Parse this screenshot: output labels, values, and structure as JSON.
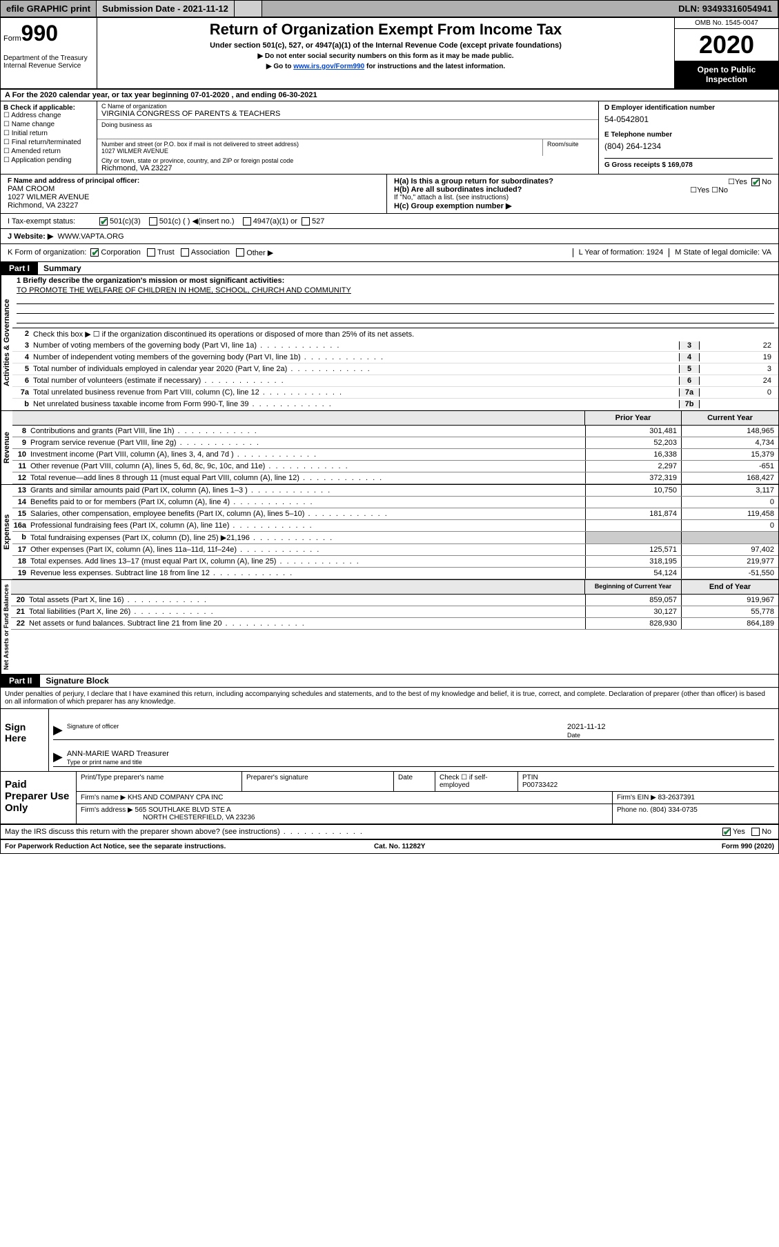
{
  "topbar": {
    "efile": "efile GRAPHIC print",
    "submission_label": "Submission Date - 2021-11-12",
    "dln": "DLN: 93493316054941"
  },
  "header": {
    "form_prefix": "Form",
    "form_number": "990",
    "title": "Return of Organization Exempt From Income Tax",
    "subtitle": "Under section 501(c), 527, or 4947(a)(1) of the Internal Revenue Code (except private foundations)",
    "note1": "▶ Do not enter social security numbers on this form as it may be made public.",
    "note2_pre": "▶ Go to ",
    "note2_link": "www.irs.gov/Form990",
    "note2_post": " for instructions and the latest information.",
    "dept": "Department of the Treasury\nInternal Revenue Service",
    "omb": "OMB No. 1545-0047",
    "year": "2020",
    "open": "Open to Public Inspection"
  },
  "section_a": "A For the 2020 calendar year, or tax year beginning 07-01-2020    , and ending 06-30-2021",
  "section_b": {
    "check_label": "B Check if applicable:",
    "checks": [
      "Address change",
      "Name change",
      "Initial return",
      "Final return/terminated",
      "Amended return",
      "Application pending"
    ],
    "org_label": "C Name of organization",
    "org_name": "VIRGINIA CONGRESS OF PARENTS & TEACHERS",
    "dba_label": "Doing business as",
    "dba": "",
    "addr_label": "Number and street (or P.O. box if mail is not delivered to street address)",
    "addr": "1027 WILMER AVENUE",
    "room_label": "Room/suite",
    "city_label": "City or town, state or province, country, and ZIP or foreign postal code",
    "city": "Richmond, VA  23227",
    "ein_label": "D Employer identification number",
    "ein": "54-0542801",
    "tel_label": "E Telephone number",
    "tel": "(804) 264-1234",
    "gross_label": "G Gross receipts $ 169,078"
  },
  "officer": {
    "label": "F  Name and address of principal officer:",
    "name": "PAM CROOM",
    "addr1": "1027 WILMER AVENUE",
    "addr2": "Richmond, VA  23227",
    "ha_label": "H(a)  Is this a group return for subordinates?",
    "hb_label": "H(b)  Are all subordinates included?",
    "h_note": "If \"No,\" attach a list. (see instructions)",
    "hc_label": "H(c)  Group exemption number ▶"
  },
  "tax_status": {
    "label": "I   Tax-exempt status:",
    "opt1": "501(c)(3)",
    "opt2": "501(c) (   ) ◀(insert no.)",
    "opt3": "4947(a)(1) or",
    "opt4": "527"
  },
  "website": {
    "label": "J   Website: ▶",
    "value": "WWW.VAPTA.ORG"
  },
  "form_org": {
    "label": "K Form of organization:",
    "opts": [
      "Corporation",
      "Trust",
      "Association",
      "Other ▶"
    ],
    "year_label": "L Year of formation: 1924",
    "state_label": "M State of legal domicile: VA"
  },
  "part1": {
    "part": "Part I",
    "title": "Summary",
    "mission_label": "1   Briefly describe the organization's mission or most significant activities:",
    "mission": "TO PROMOTE THE WELFARE OF CHILDREN IN HOME, SCHOOL, CHURCH AND COMMUNITY",
    "line2": "Check this box ▶ ☐  if the organization discontinued its operations or disposed of more than 25% of its net assets.",
    "lines_gov": [
      {
        "n": "3",
        "d": "Number of voting members of the governing body (Part VI, line 1a)",
        "b": "3",
        "v": "22"
      },
      {
        "n": "4",
        "d": "Number of independent voting members of the governing body (Part VI, line 1b)",
        "b": "4",
        "v": "19"
      },
      {
        "n": "5",
        "d": "Total number of individuals employed in calendar year 2020 (Part V, line 2a)",
        "b": "5",
        "v": "3"
      },
      {
        "n": "6",
        "d": "Total number of volunteers (estimate if necessary)",
        "b": "6",
        "v": "24"
      },
      {
        "n": "7a",
        "d": "Total unrelated business revenue from Part VIII, column (C), line 12",
        "b": "7a",
        "v": "0"
      },
      {
        "n": "b",
        "d": "Net unrelated business taxable income from Form 990-T, line 39",
        "b": "7b",
        "v": ""
      }
    ],
    "prior_label": "Prior Year",
    "current_label": "Current Year",
    "begin_label": "Beginning of Current Year",
    "end_label": "End of Year",
    "revenue": [
      {
        "n": "8",
        "d": "Contributions and grants (Part VIII, line 1h)",
        "p": "301,481",
        "c": "148,965"
      },
      {
        "n": "9",
        "d": "Program service revenue (Part VIII, line 2g)",
        "p": "52,203",
        "c": "4,734"
      },
      {
        "n": "10",
        "d": "Investment income (Part VIII, column (A), lines 3, 4, and 7d )",
        "p": "16,338",
        "c": "15,379"
      },
      {
        "n": "11",
        "d": "Other revenue (Part VIII, column (A), lines 5, 6d, 8c, 9c, 10c, and 11e)",
        "p": "2,297",
        "c": "-651"
      },
      {
        "n": "12",
        "d": "Total revenue—add lines 8 through 11 (must equal Part VIII, column (A), line 12)",
        "p": "372,319",
        "c": "168,427"
      }
    ],
    "expenses": [
      {
        "n": "13",
        "d": "Grants and similar amounts paid (Part IX, column (A), lines 1–3 )",
        "p": "10,750",
        "c": "3,117"
      },
      {
        "n": "14",
        "d": "Benefits paid to or for members (Part IX, column (A), line 4)",
        "p": "",
        "c": "0"
      },
      {
        "n": "15",
        "d": "Salaries, other compensation, employee benefits (Part IX, column (A), lines 5–10)",
        "p": "181,874",
        "c": "119,458"
      },
      {
        "n": "16a",
        "d": "Professional fundraising fees (Part IX, column (A), line 11e)",
        "p": "",
        "c": "0"
      },
      {
        "n": "b",
        "d": "Total fundraising expenses (Part IX, column (D), line 25) ▶21,196",
        "p": "",
        "c": "",
        "shade": true
      },
      {
        "n": "17",
        "d": "Other expenses (Part IX, column (A), lines 11a–11d, 11f–24e)",
        "p": "125,571",
        "c": "97,402"
      },
      {
        "n": "18",
        "d": "Total expenses. Add lines 13–17 (must equal Part IX, column (A), line 25)",
        "p": "318,195",
        "c": "219,977"
      },
      {
        "n": "19",
        "d": "Revenue less expenses. Subtract line 18 from line 12",
        "p": "54,124",
        "c": "-51,550"
      }
    ],
    "netassets": [
      {
        "n": "20",
        "d": "Total assets (Part X, line 16)",
        "p": "859,057",
        "c": "919,967"
      },
      {
        "n": "21",
        "d": "Total liabilities (Part X, line 26)",
        "p": "30,127",
        "c": "55,778"
      },
      {
        "n": "22",
        "d": "Net assets or fund balances. Subtract line 21 from line 20",
        "p": "828,930",
        "c": "864,189"
      }
    ]
  },
  "part2": {
    "part": "Part II",
    "title": "Signature Block"
  },
  "declare": "Under penalties of perjury, I declare that I have examined this return, including accompanying schedules and statements, and to the best of my knowledge and belief, it is true, correct, and complete. Declaration of preparer (other than officer) is based on all information of which preparer has any knowledge.",
  "sign": {
    "label": "Sign Here",
    "sig_label": "Signature of officer",
    "date_label": "Date",
    "date": "2021-11-12",
    "name": "ANN-MARIE WARD  Treasurer",
    "name_label": "Type or print name and title"
  },
  "prep": {
    "label": "Paid Preparer Use Only",
    "h1": "Print/Type preparer's name",
    "h2": "Preparer's signature",
    "h3": "Date",
    "h4": "Check ☐ if self-employed",
    "h5_label": "PTIN",
    "h5": "P00733422",
    "firm_label": "Firm's name    ▶",
    "firm": "KHS AND COMPANY CPA INC",
    "ein_label": "Firm's EIN ▶",
    "ein": "83-2637391",
    "addr_label": "Firm's address ▶",
    "addr1": "565 SOUTHLAKE BLVD STE A",
    "addr2": "NORTH CHESTERFIELD, VA  23236",
    "phone_label": "Phone no.",
    "phone": "(804) 334-0735"
  },
  "discuss": "May the IRS discuss this return with the preparer shown above? (see instructions)",
  "footer": {
    "left": "For Paperwork Reduction Act Notice, see the separate instructions.",
    "mid": "Cat. No. 11282Y",
    "right": "Form 990 (2020)"
  },
  "vert": {
    "gov": "Activities & Governance",
    "rev": "Revenue",
    "exp": "Expenses",
    "net": "Net Assets or Fund Balances"
  },
  "colors": {
    "black": "#000000",
    "grey": "#b0b0b0",
    "link": "#0044cc",
    "green": "#1a7a3a"
  }
}
